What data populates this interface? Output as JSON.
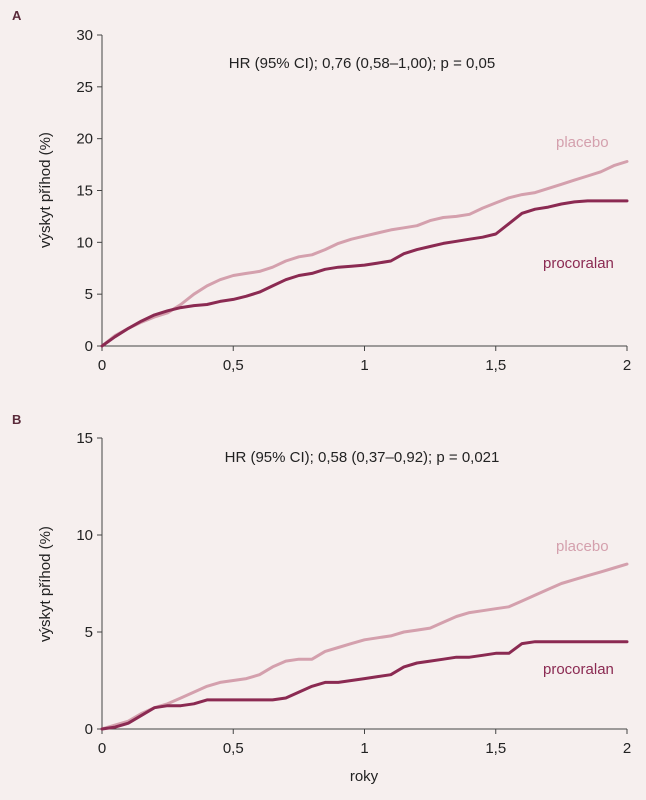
{
  "colors": {
    "placebo": "#d4a0ad",
    "procoralan": "#8b2a52",
    "background": "#f6efee"
  },
  "chart_data": [
    {
      "type": "line",
      "panel": "A",
      "annotation": "HR (95% CI); 0,76 (0,58–1,00); p = 0,05",
      "ylabel": "výskyt příhod (%)",
      "xlabel": "",
      "xlim": [
        0,
        2
      ],
      "ylim": [
        0,
        30
      ],
      "xticks": [
        "0",
        "0,5",
        "1",
        "1,5",
        "2"
      ],
      "yticks": [
        "0",
        "5",
        "10",
        "15",
        "20",
        "25",
        "30"
      ],
      "xtick_values": [
        0,
        0.5,
        1,
        1.5,
        2
      ],
      "ytick_values": [
        0,
        5,
        10,
        15,
        20,
        25,
        30
      ],
      "series": [
        {
          "name": "placebo",
          "x": [
            0,
            0.05,
            0.1,
            0.15,
            0.2,
            0.25,
            0.3,
            0.35,
            0.4,
            0.45,
            0.5,
            0.55,
            0.6,
            0.65,
            0.7,
            0.75,
            0.8,
            0.85,
            0.9,
            0.95,
            1.0,
            1.05,
            1.1,
            1.15,
            1.2,
            1.25,
            1.3,
            1.35,
            1.4,
            1.45,
            1.5,
            1.55,
            1.6,
            1.65,
            1.7,
            1.75,
            1.8,
            1.85,
            1.9,
            1.95,
            2.0
          ],
          "y": [
            0,
            1.0,
            1.7,
            2.3,
            2.8,
            3.2,
            4.0,
            5.0,
            5.8,
            6.4,
            6.8,
            7.0,
            7.2,
            7.6,
            8.2,
            8.6,
            8.8,
            9.3,
            9.9,
            10.3,
            10.6,
            10.9,
            11.2,
            11.4,
            11.6,
            12.1,
            12.4,
            12.5,
            12.7,
            13.3,
            13.8,
            14.3,
            14.6,
            14.8,
            15.2,
            15.6,
            16.0,
            16.4,
            16.8,
            17.4,
            17.8
          ]
        },
        {
          "name": "procoralan",
          "x": [
            0,
            0.05,
            0.1,
            0.15,
            0.2,
            0.25,
            0.3,
            0.35,
            0.4,
            0.45,
            0.5,
            0.55,
            0.6,
            0.65,
            0.7,
            0.75,
            0.8,
            0.85,
            0.9,
            0.95,
            1.0,
            1.05,
            1.1,
            1.15,
            1.2,
            1.25,
            1.3,
            1.35,
            1.4,
            1.45,
            1.5,
            1.55,
            1.6,
            1.65,
            1.7,
            1.75,
            1.8,
            1.85,
            1.9,
            1.95,
            2.0
          ],
          "y": [
            0,
            0.9,
            1.7,
            2.4,
            3.0,
            3.4,
            3.7,
            3.9,
            4.0,
            4.3,
            4.5,
            4.8,
            5.2,
            5.8,
            6.4,
            6.8,
            7.0,
            7.4,
            7.6,
            7.7,
            7.8,
            8.0,
            8.2,
            8.9,
            9.3,
            9.6,
            9.9,
            10.1,
            10.3,
            10.5,
            10.8,
            11.8,
            12.8,
            13.2,
            13.4,
            13.7,
            13.9,
            14.0,
            14.0,
            14.0,
            14.0
          ]
        }
      ]
    },
    {
      "type": "line",
      "panel": "B",
      "annotation": "HR (95% CI); 0,58 (0,37–0,92); p = 0,021",
      "ylabel": "výskyt příhod (%)",
      "xlabel": "roky",
      "xlim": [
        0,
        2
      ],
      "ylim": [
        0,
        15
      ],
      "xticks": [
        "0",
        "0,5",
        "1",
        "1,5",
        "2"
      ],
      "yticks": [
        "0",
        "5",
        "10",
        "15"
      ],
      "xtick_values": [
        0,
        0.5,
        1,
        1.5,
        2
      ],
      "ytick_values": [
        0,
        5,
        10,
        15
      ],
      "series": [
        {
          "name": "placebo",
          "x": [
            0,
            0.05,
            0.1,
            0.15,
            0.2,
            0.25,
            0.3,
            0.35,
            0.4,
            0.45,
            0.5,
            0.55,
            0.6,
            0.65,
            0.7,
            0.75,
            0.8,
            0.85,
            0.9,
            0.95,
            1.0,
            1.05,
            1.1,
            1.15,
            1.2,
            1.25,
            1.3,
            1.35,
            1.4,
            1.45,
            1.5,
            1.55,
            1.6,
            1.65,
            1.7,
            1.75,
            1.8,
            1.85,
            1.9,
            1.95,
            2.0
          ],
          "y": [
            0,
            0.2,
            0.4,
            0.8,
            1.1,
            1.3,
            1.6,
            1.9,
            2.2,
            2.4,
            2.5,
            2.6,
            2.8,
            3.2,
            3.5,
            3.6,
            3.6,
            4.0,
            4.2,
            4.4,
            4.6,
            4.7,
            4.8,
            5.0,
            5.1,
            5.2,
            5.5,
            5.8,
            6.0,
            6.1,
            6.2,
            6.3,
            6.6,
            6.9,
            7.2,
            7.5,
            7.7,
            7.9,
            8.1,
            8.3,
            8.5
          ]
        },
        {
          "name": "procoralan",
          "x": [
            0,
            0.05,
            0.1,
            0.15,
            0.2,
            0.25,
            0.3,
            0.35,
            0.4,
            0.45,
            0.5,
            0.55,
            0.6,
            0.65,
            0.7,
            0.75,
            0.8,
            0.85,
            0.9,
            0.95,
            1.0,
            1.05,
            1.1,
            1.15,
            1.2,
            1.25,
            1.3,
            1.35,
            1.4,
            1.45,
            1.5,
            1.55,
            1.6,
            1.65,
            1.7,
            1.75,
            1.8,
            1.85,
            1.9,
            1.95,
            2.0
          ],
          "y": [
            0,
            0.1,
            0.3,
            0.7,
            1.1,
            1.2,
            1.2,
            1.3,
            1.5,
            1.5,
            1.5,
            1.5,
            1.5,
            1.5,
            1.6,
            1.9,
            2.2,
            2.4,
            2.4,
            2.5,
            2.6,
            2.7,
            2.8,
            3.2,
            3.4,
            3.5,
            3.6,
            3.7,
            3.7,
            3.8,
            3.9,
            3.9,
            4.4,
            4.5,
            4.5,
            4.5,
            4.5,
            4.5,
            4.5,
            4.5,
            4.5
          ]
        }
      ]
    }
  ]
}
